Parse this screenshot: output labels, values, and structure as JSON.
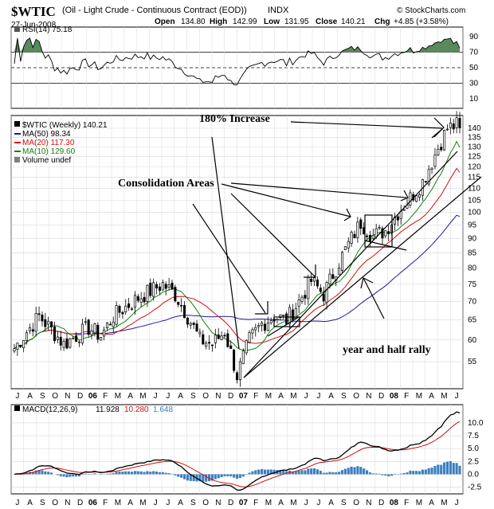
{
  "header": {
    "symbol": "$WTIC",
    "name": "(Oil - Light Crude - Continuous Contract (EOD))",
    "exchange": "INDX",
    "date": "27-Jun-2008",
    "open_label": "Open",
    "open": "134.80",
    "high_label": "High",
    "high": "142.99",
    "low_label": "Low",
    "low": "131.95",
    "close_label": "Close",
    "close": "140.21",
    "chg_label": "Chg",
    "chg": "+4.85 (+3.58%)",
    "watermark": "© StockCharts.com"
  },
  "colors": {
    "up_candle": "#ffffff",
    "down_candle": "#000000",
    "ma50": "#1a1aa0",
    "ma20": "#d01010",
    "ma10": "#108010",
    "macd_line": "#000000",
    "signal_line": "#d01010",
    "histogram": "#3a7fc0",
    "rsi_fill": "#5a8a5a",
    "grid": "#d8d8d8"
  },
  "chart_data": [
    {
      "type": "line",
      "panel": "rsi",
      "legend": [
        "RSI(14) 75.18"
      ],
      "y_ticks": [
        "90",
        "70",
        "50",
        "30",
        "10"
      ],
      "ylim": [
        0,
        100
      ],
      "reference_lines": [
        70,
        50,
        30
      ],
      "last_value": 75.18
    },
    {
      "type": "candlestick",
      "panel": "price",
      "legend": [
        {
          "label": "$WTIC (Weekly) 140.21",
          "color": "#000000"
        },
        {
          "label": "MA(50) 98.34",
          "color": "#1a1aa0"
        },
        {
          "label": "MA(20) 117.30",
          "color": "#d01010"
        },
        {
          "label": "MA(10) 129.60",
          "color": "#108010"
        },
        {
          "label": "Volume undef",
          "color": "#808080"
        }
      ],
      "y_scale": "log",
      "y_ticks": [
        "140",
        "135",
        "130",
        "125",
        "120",
        "115",
        "110",
        "105",
        "100",
        "95",
        "90",
        "85",
        "80",
        "75",
        "70",
        "65",
        "60",
        "55"
      ],
      "ylim": [
        50,
        145
      ],
      "x_ticks": [
        "J",
        "A",
        "S",
        "O",
        "N",
        "D",
        "06",
        "F",
        "M",
        "A",
        "M",
        "J",
        "J",
        "A",
        "S",
        "O",
        "N",
        "D",
        "07",
        "F",
        "M",
        "A",
        "M",
        "J",
        "J",
        "A",
        "S",
        "O",
        "N",
        "D",
        "08",
        "F",
        "M",
        "A",
        "M",
        "J"
      ],
      "weekly_close_anchors": [
        {
          "month": 0,
          "close": 58
        },
        {
          "month": 2,
          "close": 66
        },
        {
          "month": 4,
          "close": 59
        },
        {
          "month": 6,
          "close": 63
        },
        {
          "month": 7,
          "close": 61
        },
        {
          "month": 8,
          "close": 66
        },
        {
          "month": 10,
          "close": 71
        },
        {
          "month": 12,
          "close": 75
        },
        {
          "month": 13,
          "close": 72
        },
        {
          "month": 15,
          "close": 60
        },
        {
          "month": 16,
          "close": 59
        },
        {
          "month": 17,
          "close": 62
        },
        {
          "month": 18,
          "close": 52
        },
        {
          "month": 19,
          "close": 60
        },
        {
          "month": 20,
          "close": 64
        },
        {
          "month": 21,
          "close": 66
        },
        {
          "month": 22,
          "close": 65
        },
        {
          "month": 23,
          "close": 70
        },
        {
          "month": 24,
          "close": 76
        },
        {
          "month": 25,
          "close": 72
        },
        {
          "month": 26,
          "close": 80
        },
        {
          "month": 27,
          "close": 88
        },
        {
          "month": 28,
          "close": 96
        },
        {
          "month": 29,
          "close": 91
        },
        {
          "month": 30,
          "close": 93
        },
        {
          "month": 31,
          "close": 100
        },
        {
          "month": 32,
          "close": 106
        },
        {
          "month": 33,
          "close": 113
        },
        {
          "month": 34,
          "close": 126
        },
        {
          "month": 35,
          "close": 140
        }
      ],
      "ma50_last": 98.34,
      "ma20_last": 117.3,
      "ma10_last": 129.6,
      "annotations": [
        {
          "text": "180% Increase"
        },
        {
          "text": "Consolidation Areas"
        },
        {
          "text": "year and half rally"
        }
      ]
    },
    {
      "type": "line",
      "panel": "macd",
      "legend": [
        {
          "label": "MACD(12,26,9)",
          "value": "11.928",
          "color": "#000000"
        },
        {
          "label": "",
          "value": "10.280",
          "color": "#d01010"
        },
        {
          "label": "",
          "value": "1.648",
          "color": "#3a7fc0"
        }
      ],
      "y_ticks": [
        "10.0",
        "7.5",
        "5.0",
        "2.5",
        "0.0",
        "-2.5"
      ],
      "ylim": [
        -3.5,
        12
      ],
      "last_macd": 11.928,
      "last_signal": 10.28,
      "last_histogram": 1.648,
      "x_ticks": [
        "J",
        "A",
        "S",
        "O",
        "N",
        "D",
        "06",
        "F",
        "M",
        "A",
        "M",
        "J",
        "J",
        "A",
        "S",
        "O",
        "N",
        "D",
        "07",
        "F",
        "M",
        "A",
        "M",
        "J",
        "J",
        "A",
        "S",
        "O",
        "N",
        "D",
        "08",
        "F",
        "M",
        "A",
        "M",
        "J"
      ]
    }
  ]
}
